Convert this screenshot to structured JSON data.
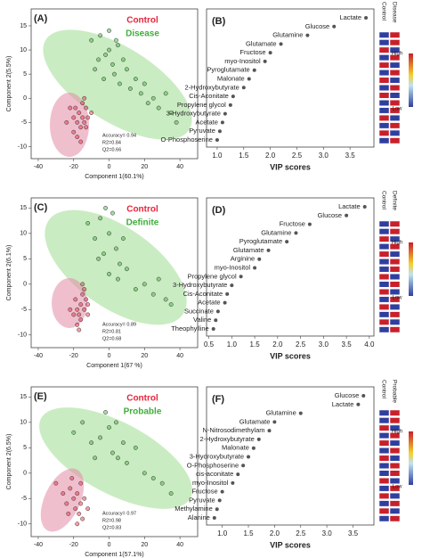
{
  "chart_data": [
    {
      "type": "scatter",
      "panel": "(A)",
      "xlabel": "Component 1(60.1%)",
      "ylabel": "Component 2(5.5%)",
      "xlim": [
        -44,
        50
      ],
      "ylim": [
        -12.5,
        18.5
      ],
      "xticks": [
        -40,
        -20,
        0,
        20,
        40
      ],
      "yticks": [
        -10,
        -5,
        0,
        5,
        10,
        15
      ],
      "annotations": [
        "Accuracy= 0.94",
        "R2=0.84",
        "Q2=0.66"
      ],
      "series": [
        {
          "name": "Control",
          "color": "#e8253c",
          "x": [
            -22,
            -20,
            -18,
            -17,
            -16,
            -15,
            -14,
            -13,
            -12,
            -20,
            -18,
            -15,
            -13,
            -24,
            -10,
            -16,
            -19,
            -14
          ],
          "y": [
            -2,
            -4,
            -5,
            -3,
            -6,
            -4,
            -5,
            -2,
            -4,
            -7,
            -8,
            -1,
            -6,
            -5,
            -3,
            -9,
            -2,
            0
          ]
        },
        {
          "name": "Disease",
          "color": "#3fae3a",
          "x": [
            -10,
            -5,
            -2,
            0,
            2,
            5,
            8,
            -8,
            -3,
            3,
            6,
            10,
            12,
            15,
            18,
            20,
            22,
            25,
            28,
            32,
            35,
            38,
            0,
            -6,
            4
          ],
          "y": [
            12,
            13,
            9,
            10,
            7,
            11,
            8,
            6,
            4,
            5,
            3,
            6,
            2,
            4,
            1,
            3,
            -1,
            0,
            -2,
            1,
            -3,
            -5,
            14,
            8,
            12
          ]
        }
      ]
    },
    {
      "type": "vip",
      "panel": "(B)",
      "xlabel": "VIP scores",
      "categories": [
        "Lactate",
        "Glucose",
        "Glutamine",
        "Glutamate",
        "Fructose",
        "myo-Inositol",
        "Pyroglutamate",
        "Malonate",
        "2-Hydroxybutyrate",
        "Cis-Aconitate",
        "Propylene glycol",
        "3-Hydroxybutyrate",
        "Acetate",
        "Pyruvate",
        "O-Phosphoserine"
      ],
      "values": [
        3.8,
        3.2,
        2.7,
        2.2,
        2.0,
        1.9,
        1.7,
        1.6,
        1.5,
        1.3,
        1.25,
        1.15,
        1.1,
        1.05,
        1.0
      ],
      "xlim": [
        0.8,
        3.95
      ],
      "xticks": [
        {
          "value": 1,
          "label": "1.0"
        },
        1.5,
        {
          "value": 2,
          "label": "2.0"
        },
        2.5,
        {
          "value": 3,
          "label": "3.0"
        },
        3.5
      ],
      "heatmap": {
        "columns": [
          "Control",
          "Disease"
        ],
        "scale": [
          "High",
          "Low"
        ],
        "colors": [
          [
            "#2f3f9e",
            "#2f3f9e",
            "#c8202a",
            "#2f3f9e",
            "#c8202a",
            "#2f3f9e",
            "#c8202a",
            "#2f3f9e",
            "#c8202a",
            "#2f3f9e",
            "#2f3f9e",
            "#c8202a",
            "#2f3f9e",
            "#c8202a",
            "#2f3f9e"
          ],
          [
            "#c8202a",
            "#c8202a",
            "#2f3f9e",
            "#c8202a",
            "#2f3f9e",
            "#c8202a",
            "#2f3f9e",
            "#c8202a",
            "#2f3f9e",
            "#c8202a",
            "#c8202a",
            "#2f3f9e",
            "#c8202a",
            "#2f3f9e",
            "#c8202a"
          ]
        ]
      }
    },
    {
      "type": "scatter",
      "panel": "(C)",
      "xlabel": "Component 1(67 %)",
      "ylabel": "Component 2(6.1%)",
      "xlim": [
        -44,
        50
      ],
      "ylim": [
        -12.5,
        17
      ],
      "xticks": [
        -40,
        -20,
        0,
        20,
        40
      ],
      "yticks": [
        -10,
        -5,
        0,
        5,
        10,
        15
      ],
      "annotations": [
        "Accuracy= 0.89",
        "R2=0.81",
        "Q2=0.68"
      ],
      "series": [
        {
          "name": "Control",
          "color": "#e8253c",
          "x": [
            -22,
            -19,
            -18,
            -17,
            -16,
            -15,
            -14,
            -13,
            -12,
            -18,
            -16,
            -14,
            -20,
            -15,
            -12,
            -17
          ],
          "y": [
            -5,
            -3,
            -5,
            -6,
            -4,
            -2,
            -5,
            -3,
            -6,
            -8,
            -7,
            -1,
            -6,
            0,
            -4,
            -9
          ]
        },
        {
          "name": "Definite",
          "color": "#3fae3a",
          "x": [
            -12,
            -8,
            -5,
            -3,
            0,
            2,
            4,
            6,
            -6,
            0,
            5,
            10,
            15,
            20,
            25,
            28,
            32,
            35,
            8,
            -2
          ],
          "y": [
            12,
            9,
            13,
            6,
            10,
            14,
            7,
            4,
            5,
            2,
            1,
            3,
            -1,
            0,
            -2,
            1,
            -3,
            -4,
            9,
            15
          ]
        }
      ]
    },
    {
      "type": "vip",
      "panel": "(D)",
      "xlabel": "VIP scores",
      "categories": [
        "Lactate",
        "Glucose",
        "Fructose",
        "Glutamine",
        "Pyroglutamate",
        "Glutamate",
        "Arginine",
        "myo-Inositol",
        "Propylene glycol",
        "3-Hydroxybutyrate",
        "Cis-Aconitate",
        "Acetate",
        "Succinate",
        "Valine",
        "Theophylline"
      ],
      "values": [
        3.9,
        3.5,
        2.7,
        2.4,
        2.2,
        1.8,
        1.6,
        1.5,
        1.2,
        1.0,
        0.9,
        0.85,
        0.7,
        0.65,
        0.6
      ],
      "xlim": [
        0.45,
        4.1
      ],
      "xticks": [
        0.5,
        {
          "value": 1,
          "label": "1.0"
        },
        1.5,
        {
          "value": 2,
          "label": "2.0"
        },
        2.5,
        {
          "value": 3,
          "label": "3.0"
        },
        3.5,
        {
          "value": 4,
          "label": "4.0"
        }
      ],
      "heatmap": {
        "columns": [
          "Control",
          "Definite"
        ],
        "scale": [
          "High",
          "Low"
        ],
        "colors": [
          [
            "#2f3f9e",
            "#2f3f9e",
            "#c8202a",
            "#2f3f9e",
            "#c8202a",
            "#2f3f9e",
            "#2f3f9e",
            "#c8202a",
            "#2f3f9e",
            "#c8202a",
            "#2f3f9e",
            "#c8202a",
            "#2f3f9e",
            "#c8202a",
            "#2f3f9e"
          ],
          [
            "#c8202a",
            "#c8202a",
            "#2f3f9e",
            "#c8202a",
            "#2f3f9e",
            "#c8202a",
            "#c8202a",
            "#2f3f9e",
            "#c8202a",
            "#2f3f9e",
            "#c8202a",
            "#2f3f9e",
            "#c8202a",
            "#2f3f9e",
            "#c8202a"
          ]
        ]
      }
    },
    {
      "type": "scatter",
      "panel": "(E)",
      "xlabel": "Component 1(57.1%)",
      "ylabel": "Component 2(6.5%)",
      "xlim": [
        -44,
        50
      ],
      "ylim": [
        -12.5,
        17
      ],
      "xticks": [
        -40,
        -20,
        0,
        20,
        40
      ],
      "yticks": [
        -10,
        -5,
        0,
        5,
        10,
        15
      ],
      "annotations": [
        "Accuracy= 0.97",
        "R2=0.98",
        "Q2=0.83"
      ],
      "series": [
        {
          "name": "Control",
          "color": "#e8253c",
          "x": [
            -30,
            -26,
            -24,
            -22,
            -20,
            -19,
            -18,
            -17,
            -16,
            -15,
            -14,
            -21,
            -18,
            -23,
            -16,
            -12
          ],
          "y": [
            -2,
            -4,
            -6,
            -3,
            -5,
            -7,
            -4,
            -8,
            -6,
            -9,
            -5,
            -1,
            -10,
            -8,
            -2,
            -7
          ]
        },
        {
          "name": "Probable",
          "color": "#3fae3a",
          "x": [
            -20,
            -15,
            -10,
            -5,
            0,
            2,
            5,
            8,
            -8,
            -2,
            10,
            15,
            20,
            25,
            30,
            35,
            4
          ],
          "y": [
            8,
            10,
            6,
            7,
            9,
            4,
            3,
            6,
            3,
            12,
            2,
            5,
            0,
            -1,
            -2,
            -4,
            10
          ]
        }
      ]
    },
    {
      "type": "vip",
      "panel": "(F)",
      "xlabel": "VIP scores",
      "categories": [
        "Glucose",
        "Lactate",
        "Glutamine",
        "Glutamate",
        "N-Nitrosodimethylam",
        "2-Hydroxybutyrate",
        "Malonate",
        "3-Hydroxybutyrate",
        "O-Phosphoserine",
        "cis-aconitate",
        "myo-Inositol",
        "Fructose",
        "Pyruvate",
        "Methylamine",
        "Alanine"
      ],
      "values": [
        3.7,
        3.6,
        2.5,
        2.0,
        1.9,
        1.7,
        1.6,
        1.5,
        1.4,
        1.3,
        1.2,
        1.0,
        0.95,
        0.9,
        0.85
      ],
      "xlim": [
        0.7,
        3.9
      ],
      "xticks": [
        {
          "value": 1,
          "label": "1.0"
        },
        1.5,
        {
          "value": 2,
          "label": "2.0"
        },
        2.5,
        {
          "value": 3,
          "label": "3.0"
        },
        3.5
      ],
      "heatmap": {
        "columns": [
          "Control",
          "Probable"
        ],
        "scale": [
          "High",
          "Low"
        ],
        "colors": [
          [
            "#2f3f9e",
            "#2f3f9e",
            "#c8202a",
            "#2f3f9e",
            "#c8202a",
            "#2f3f9e",
            "#c8202a",
            "#2f3f9e",
            "#2f3f9e",
            "#c8202a",
            "#2f3f9e",
            "#c8202a",
            "#2f3f9e",
            "#c8202a",
            "#2f3f9e"
          ],
          [
            "#c8202a",
            "#c8202a",
            "#2f3f9e",
            "#c8202a",
            "#2f3f9e",
            "#c8202a",
            "#2f3f9e",
            "#c8202a",
            "#c8202a",
            "#2f3f9e",
            "#c8202a",
            "#2f3f9e",
            "#c8202a",
            "#2f3f9e",
            "#c8202a"
          ]
        ]
      }
    }
  ]
}
